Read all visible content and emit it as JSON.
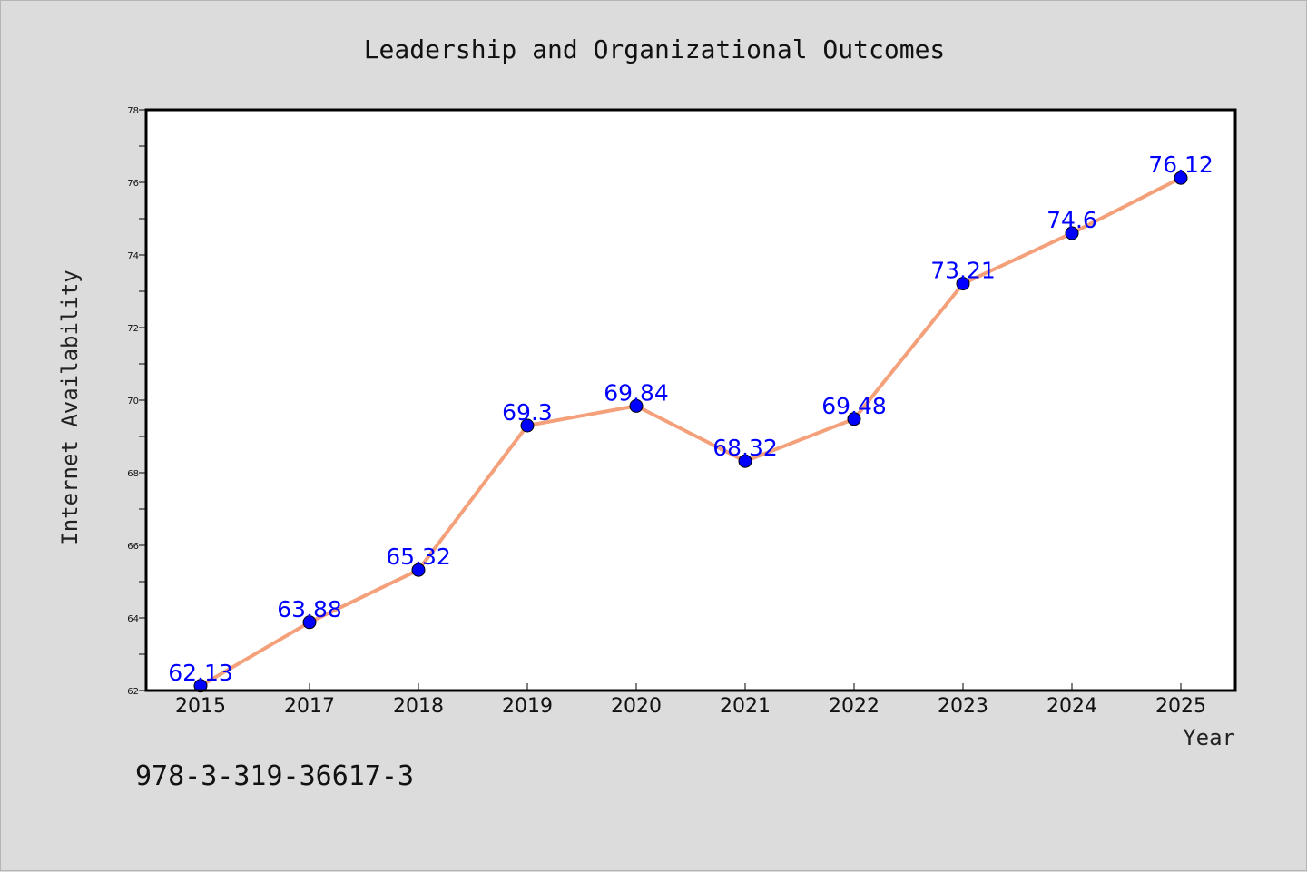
{
  "chart_data": {
    "type": "line",
    "title": "Leadership and Organizational Outcomes",
    "xlabel": "Year",
    "ylabel": "Internet Availability",
    "categories": [
      "2015",
      "2017",
      "2018",
      "2019",
      "2020",
      "2021",
      "2022",
      "2023",
      "2024",
      "2025"
    ],
    "series": [
      {
        "values": [
          62.13,
          63.88,
          65.32,
          69.3,
          69.84,
          68.32,
          69.48,
          73.21,
          74.6,
          76.12
        ],
        "line_color": "#f4a07a",
        "marker_color": "#0000ff"
      }
    ],
    "data_labels": [
      "62.13",
      "63.88",
      "65.32",
      "69.3",
      "69.84",
      "68.32",
      "69.48",
      "73.21",
      "74.6",
      "76.12"
    ],
    "ylim": [
      62,
      78
    ],
    "yticks": [
      62,
      64,
      66,
      68,
      70,
      72,
      74,
      76,
      78
    ],
    "grid": false,
    "legend": "none",
    "colors": {
      "data_label": "#0000ff",
      "background": "#dcdcdc",
      "plot_background": "#ffffff"
    }
  },
  "footer": {
    "identifier": "978-3-319-36617-3"
  }
}
